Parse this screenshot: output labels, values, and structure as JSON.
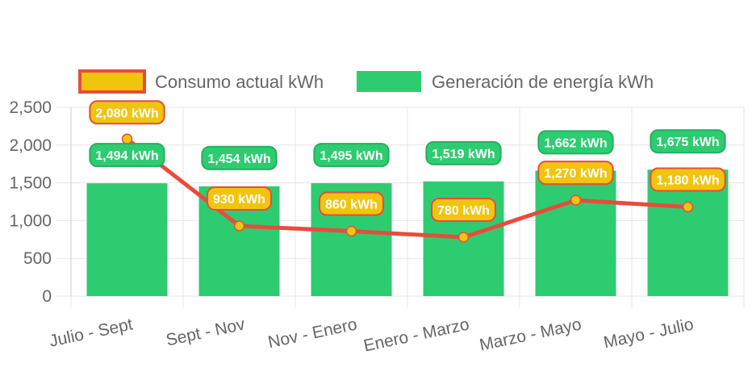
{
  "chart_data": {
    "type": "bar",
    "categories": [
      "Julio - Sept",
      "Sept - Nov",
      "Nov - Enero",
      "Enero - Marzo",
      "Marzo - Mayo",
      "Mayo - Julio"
    ],
    "series": [
      {
        "name": "Consumo actual kWh",
        "type": "line",
        "values": [
          2080,
          930,
          860,
          780,
          1270,
          1180
        ],
        "labels": [
          "2,080 kWh",
          "930 kWh",
          "860 kWh",
          "780 kWh",
          "1,270 kWh",
          "1,180 kWh"
        ]
      },
      {
        "name": "Generación de energía kWh",
        "type": "bar",
        "values": [
          1494,
          1454,
          1495,
          1519,
          1662,
          1675
        ],
        "labels": [
          "1,494 kWh",
          "1,454 kWh",
          "1,495 kWh",
          "1,519 kWh",
          "1,662 kWh",
          "1,675 kWh"
        ]
      }
    ],
    "y_ticks": [
      "0",
      "500",
      "1,000",
      "1,500",
      "2,000",
      "2,500"
    ],
    "ylim": [
      0,
      2500
    ],
    "grid": true,
    "legend_position": "top",
    "colors": {
      "bar": "#2ecc71",
      "bar_label_border": "#27ae60",
      "line": "#e74c3c",
      "line_label_fill": "#f1c40f",
      "point_fill": "#f1c40f",
      "grid": "#e5e5e5",
      "axis_text": "#666666"
    }
  }
}
